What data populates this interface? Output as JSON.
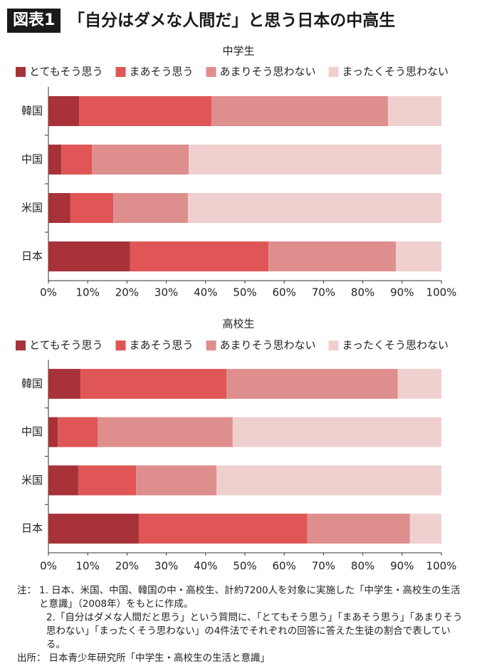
{
  "header": {
    "badge": "図表1",
    "title": "「自分はダメな人間だ」と思う日本の中高生"
  },
  "chart_data": [
    {
      "type": "bar",
      "orientation": "horizontal",
      "stacked": true,
      "subtitle": "中学生",
      "categories": [
        "韓国",
        "中国",
        "米国",
        "日本"
      ],
      "series": [
        {
          "name": "とてもそう思う",
          "color": "#a8323a",
          "values": [
            7.8,
            3.3,
            5.6,
            20.8
          ]
        },
        {
          "name": "まあそう思う",
          "color": "#e05656",
          "values": [
            33.7,
            7.8,
            10.9,
            35.2
          ]
        },
        {
          "name": "あまりそう思わない",
          "color": "#df8e8e",
          "values": [
            44.9,
            24.6,
            19.0,
            32.4
          ]
        },
        {
          "name": "まったくそう思わない",
          "color": "#f0d0cf",
          "values": [
            13.6,
            64.3,
            64.5,
            11.6
          ]
        }
      ],
      "xlim": [
        0,
        100
      ],
      "xticks": [
        {
          "value": 0,
          "label": "0%"
        },
        {
          "value": 10,
          "label": "10%"
        },
        {
          "value": 20,
          "label": "20%"
        },
        {
          "value": 30,
          "label": "30%"
        },
        {
          "value": 40,
          "label": "40%"
        },
        {
          "value": 50,
          "label": "50%"
        },
        {
          "value": 60,
          "label": "60%"
        },
        {
          "value": 70,
          "label": "70%"
        },
        {
          "value": 80,
          "label": "80%"
        },
        {
          "value": 90,
          "label": "90%"
        },
        {
          "value": 100,
          "label": "100%"
        }
      ],
      "legend": "top"
    },
    {
      "type": "bar",
      "orientation": "horizontal",
      "stacked": true,
      "subtitle": "高校生",
      "categories": [
        "韓国",
        "中国",
        "米国",
        "日本"
      ],
      "series": [
        {
          "name": "とてもそう思う",
          "color": "#a8323a",
          "values": [
            8.2,
            2.4,
            7.6,
            23.0
          ]
        },
        {
          "name": "まあそう思う",
          "color": "#e05656",
          "values": [
            37.1,
            10.1,
            14.7,
            42.9
          ]
        },
        {
          "name": "あまりそう思わない",
          "color": "#df8e8e",
          "values": [
            43.6,
            34.4,
            20.5,
            26.1
          ]
        },
        {
          "name": "まったくそう思わない",
          "color": "#f0d0cf",
          "values": [
            11.1,
            53.1,
            57.2,
            8.0
          ]
        }
      ],
      "xlim": [
        0,
        100
      ],
      "xticks": [
        {
          "value": 0,
          "label": "0%"
        },
        {
          "value": 10,
          "label": "10%"
        },
        {
          "value": 20,
          "label": "20%"
        },
        {
          "value": 30,
          "label": "30%"
        },
        {
          "value": 40,
          "label": "40%"
        },
        {
          "value": 50,
          "label": "50%"
        },
        {
          "value": 60,
          "label": "60%"
        },
        {
          "value": 70,
          "label": "70%"
        },
        {
          "value": 80,
          "label": "80%"
        },
        {
          "value": 90,
          "label": "90%"
        },
        {
          "value": 100,
          "label": "100%"
        }
      ],
      "legend": "top"
    }
  ],
  "notes": {
    "label": "注：",
    "items": [
      "1. 日本、米国、中国、韓国の中・高校生、計約7200人を対象に実施した「中学生・高校生の生活と意識」（2008年）をもとに作成。",
      "2.「自分はダメな人間だと思う」という質問に、「とてもそう思う」「まあそう思う」「あまりそう思わない」「まったくそう思わない」の4件法でそれぞれの回答に答えた生徒の割合で表している。"
    ],
    "source_label": "出所：",
    "source": "日本青少年研究所「中学生・高校生の生活と意識」"
  }
}
